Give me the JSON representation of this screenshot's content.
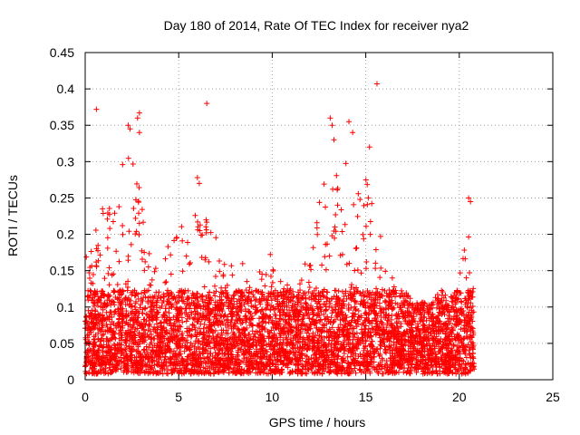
{
  "chart_data": {
    "type": "scatter",
    "title": "Day 180 of 2014, Rate Of TEC Index for receiver nya2",
    "xlabel": "GPS time / hours",
    "ylabel": "ROTI / TECUs",
    "xlim": [
      0,
      25
    ],
    "ylim": [
      0,
      0.45
    ],
    "x_ticks": [
      0,
      5,
      10,
      15,
      20,
      25
    ],
    "x_tick_labels": [
      "0",
      "5",
      "10",
      "15",
      "20",
      "25"
    ],
    "y_ticks": [
      0,
      0.05,
      0.1,
      0.15,
      0.2,
      0.25,
      0.3,
      0.35,
      0.4,
      0.45
    ],
    "y_tick_labels": [
      "0",
      "0.05",
      "0.1",
      "0.15",
      "0.2",
      "0.25",
      "0.3",
      "0.35",
      "0.4",
      "0.45"
    ],
    "grid": true,
    "marker": "+",
    "series_color": "#ff0000",
    "data_range_x": [
      0,
      20.8
    ],
    "envelope": {
      "x": [
        0,
        0.5,
        1.0,
        1.5,
        2.0,
        2.5,
        3.0,
        3.5,
        4.0,
        4.5,
        5.0,
        5.5,
        6.0,
        6.5,
        7.0,
        7.5,
        8.0,
        8.5,
        9.0,
        9.5,
        10.0,
        10.5,
        11.0,
        11.5,
        12.0,
        12.5,
        13.0,
        13.5,
        14.0,
        14.5,
        15.0,
        15.5,
        16.0,
        16.5,
        17.0,
        17.5,
        18.0,
        18.5,
        19.0,
        19.5,
        20.0,
        20.5,
        20.8
      ],
      "y_max": [
        0.17,
        0.2,
        0.25,
        0.24,
        0.3,
        0.32,
        0.26,
        0.18,
        0.17,
        0.2,
        0.22,
        0.21,
        0.25,
        0.22,
        0.2,
        0.18,
        0.16,
        0.16,
        0.15,
        0.17,
        0.18,
        0.15,
        0.15,
        0.14,
        0.2,
        0.26,
        0.3,
        0.28,
        0.3,
        0.25,
        0.28,
        0.26,
        0.2,
        0.13,
        0.12,
        0.1,
        0.1,
        0.1,
        0.12,
        0.1,
        0.18,
        0.22,
        0.12
      ]
    },
    "outliers": [
      {
        "x": 0.6,
        "y": 0.372
      },
      {
        "x": 2.3,
        "y": 0.35
      },
      {
        "x": 2.4,
        "y": 0.345
      },
      {
        "x": 2.9,
        "y": 0.367
      },
      {
        "x": 2.8,
        "y": 0.36
      },
      {
        "x": 2.9,
        "y": 0.34
      },
      {
        "x": 6.5,
        "y": 0.38
      },
      {
        "x": 13.1,
        "y": 0.36
      },
      {
        "x": 13.2,
        "y": 0.35
      },
      {
        "x": 13.3,
        "y": 0.33
      },
      {
        "x": 14.1,
        "y": 0.355
      },
      {
        "x": 14.3,
        "y": 0.34
      },
      {
        "x": 15.2,
        "y": 0.32
      },
      {
        "x": 15.6,
        "y": 0.407
      },
      {
        "x": 20.5,
        "y": 0.25
      },
      {
        "x": 20.6,
        "y": 0.245
      },
      {
        "x": 6.0,
        "y": 0.278
      },
      {
        "x": 6.1,
        "y": 0.27
      }
    ]
  }
}
